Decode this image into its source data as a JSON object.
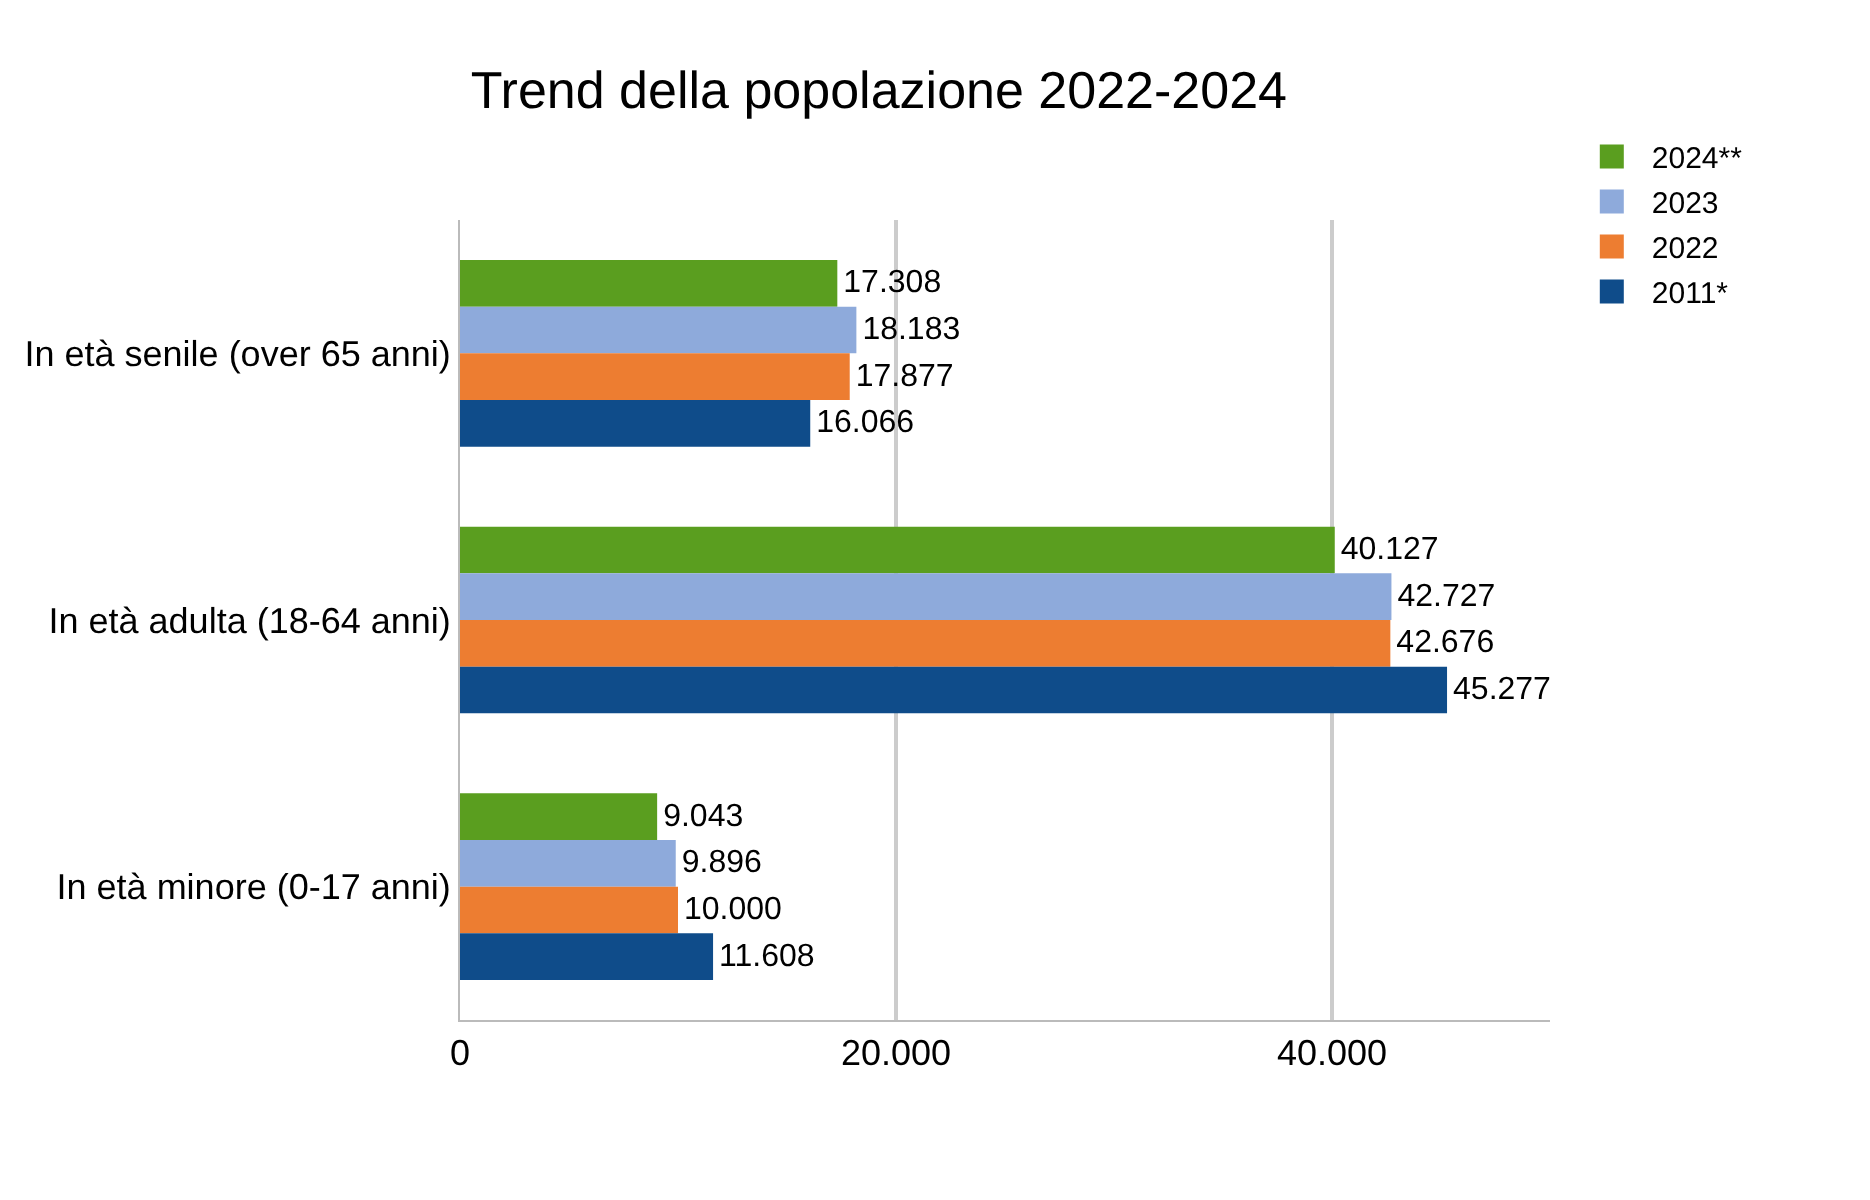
{
  "chart_data": {
    "type": "bar",
    "orientation": "horizontal",
    "title": "Trend della popolazione 2022-2024",
    "categories": [
      "In età senile (over 65 anni)",
      "In età adulta (18-64 anni)",
      "In età minore (0-17 anni)"
    ],
    "series": [
      {
        "name": "2024**",
        "color": "#5a9e1f",
        "values": [
          17308,
          40127,
          9043
        ],
        "value_labels": [
          "17.308",
          "40.127",
          "9.043"
        ]
      },
      {
        "name": "2023",
        "color": "#8eaadb",
        "values": [
          18183,
          42727,
          9896
        ],
        "value_labels": [
          "18.183",
          "42.727",
          "9.896"
        ]
      },
      {
        "name": "2022",
        "color": "#ed7d31",
        "values": [
          17877,
          42676,
          10000
        ],
        "value_labels": [
          "17.877",
          "42.676",
          "10.000"
        ]
      },
      {
        "name": "2011*",
        "color": "#0f4c8a",
        "values": [
          16066,
          45277,
          11608
        ],
        "value_labels": [
          "16.066",
          "45.277",
          "11.608"
        ]
      }
    ],
    "xlim": [
      0,
      50000
    ],
    "xticks": [
      0,
      {
        "value": 20000,
        "label": "20.000"
      },
      {
        "value": 40000,
        "label": "40.000"
      }
    ],
    "grid": "x",
    "legend": "top right"
  }
}
